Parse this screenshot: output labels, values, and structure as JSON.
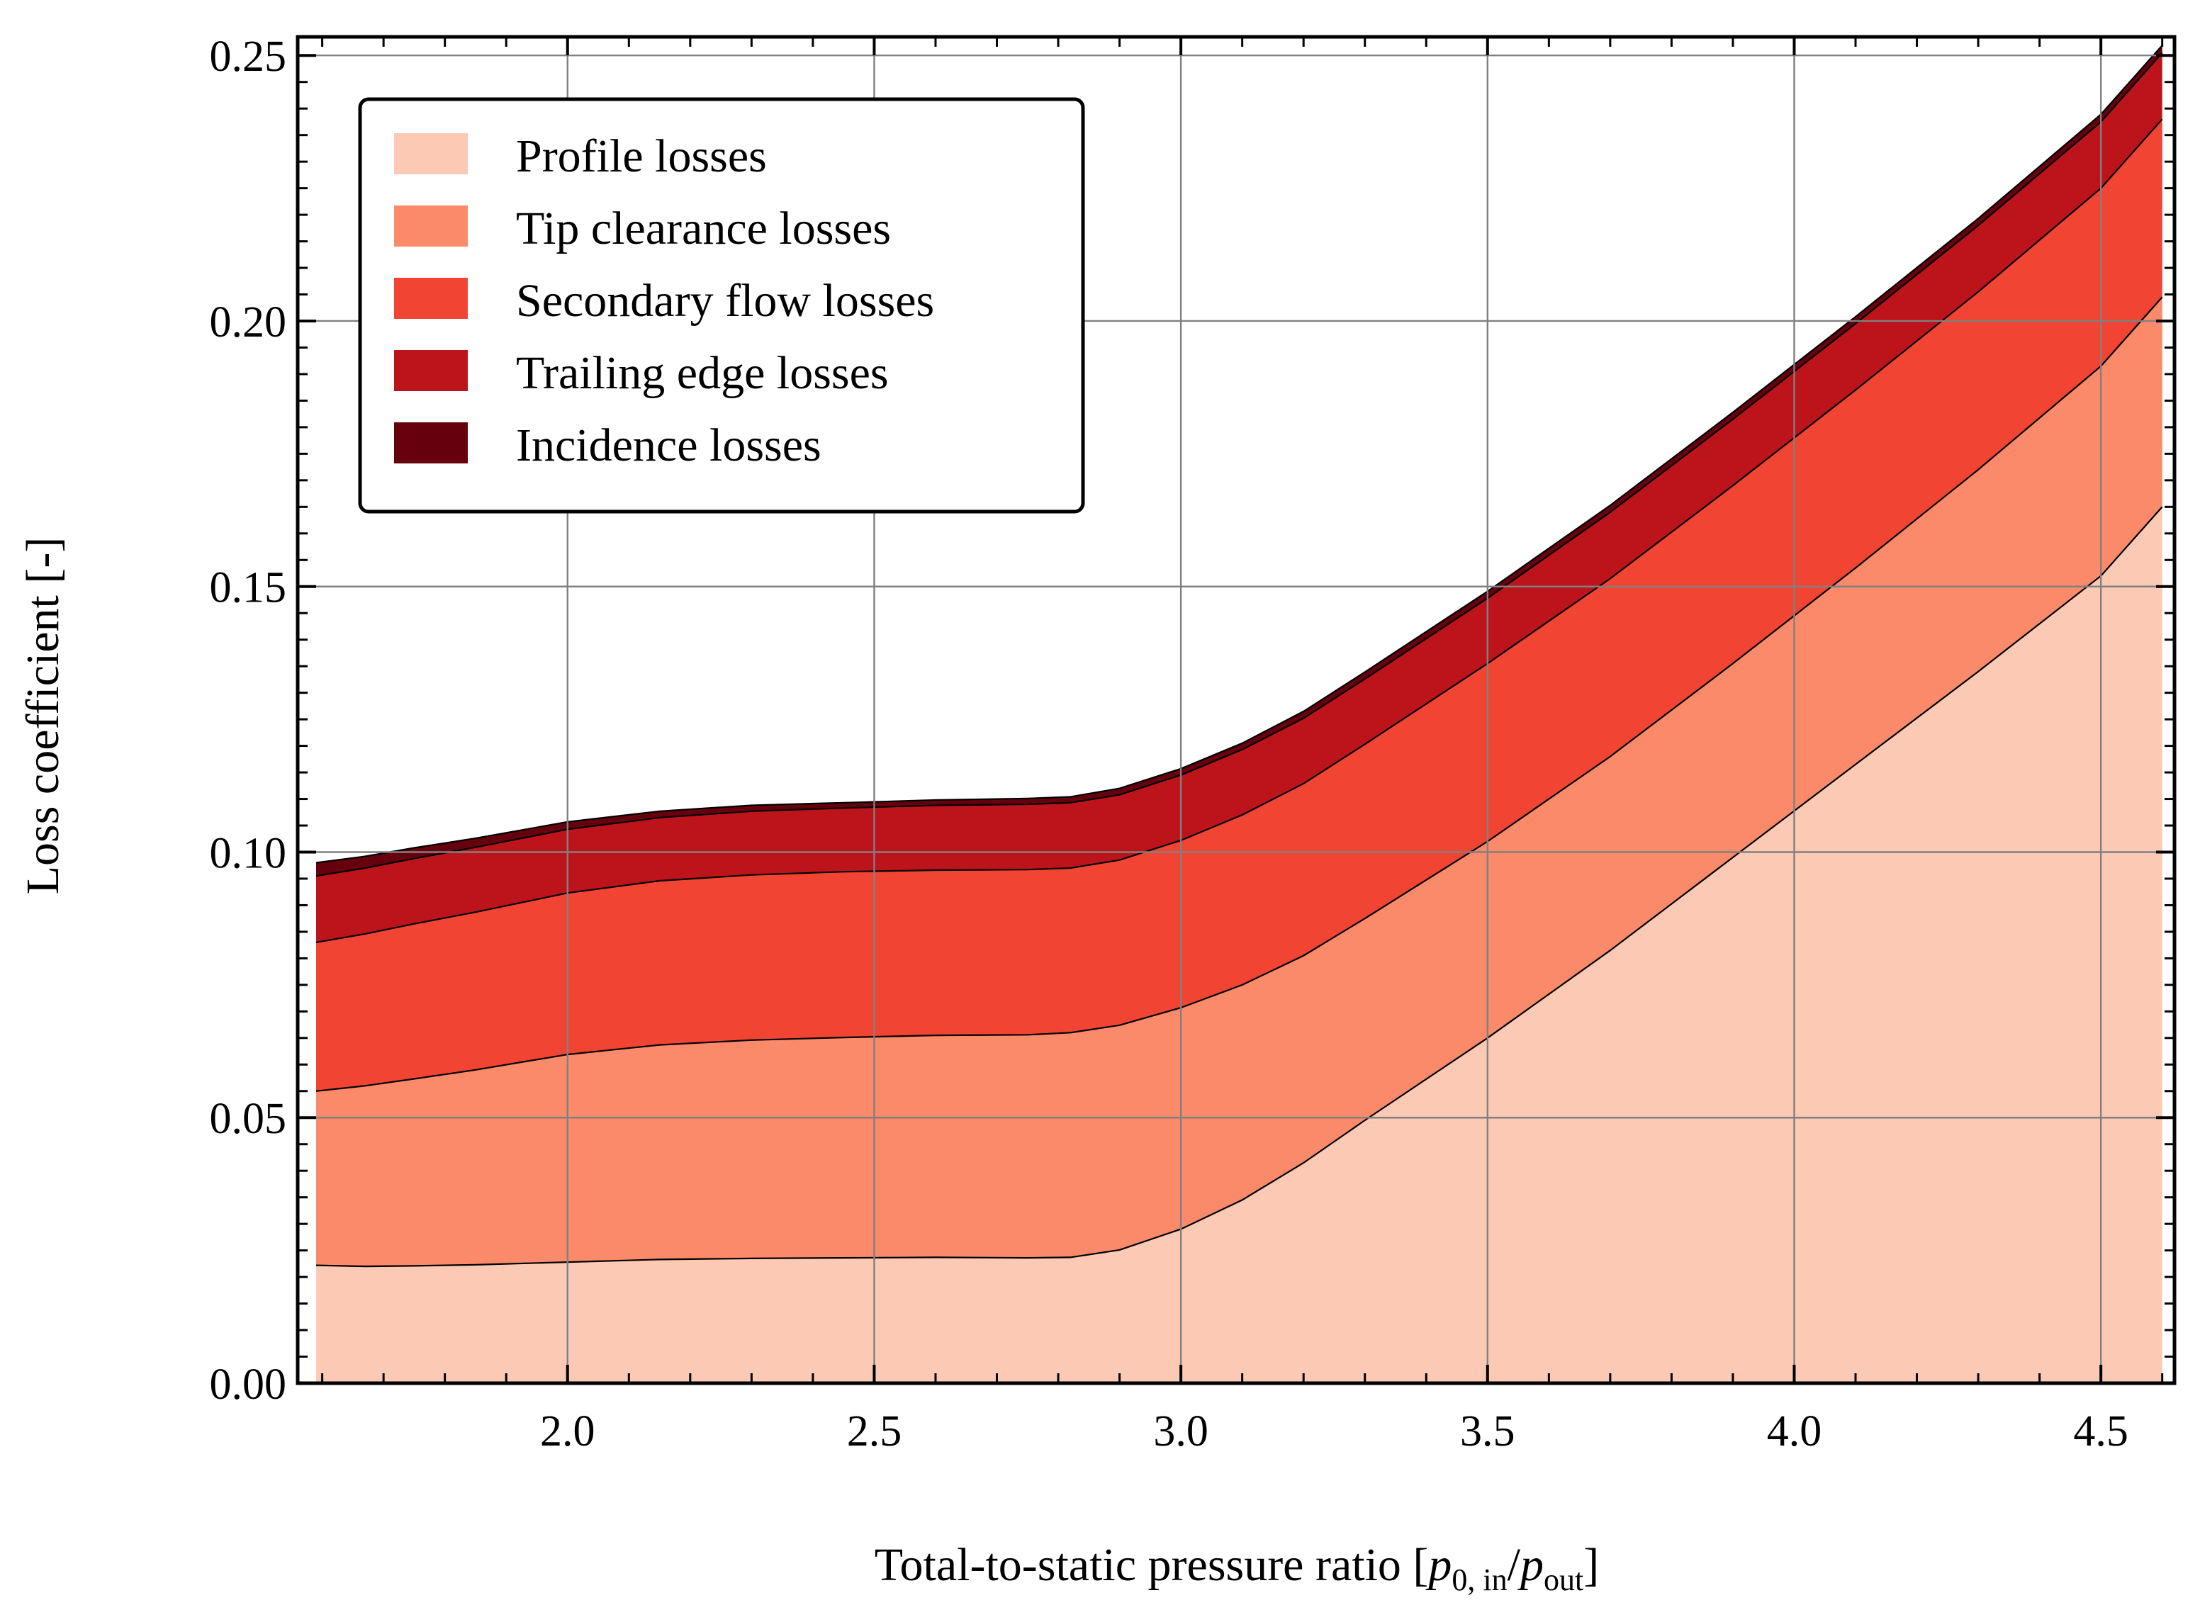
{
  "chart_data": {
    "type": "area",
    "stacked": true,
    "xlabel_main": "Total-to-static pressure ratio [",
    "xlabel_p1": "p",
    "xlabel_sub1": "0, in",
    "xlabel_slash": "/",
    "xlabel_p2": "p",
    "xlabel_sub2": "out",
    "xlabel_close": "]",
    "ylabel": "Loss coefficient [-]",
    "xlim": [
      1.56,
      4.62
    ],
    "ylim": [
      0.0,
      0.2535
    ],
    "xticks": [
      2.0,
      2.5,
      3.0,
      3.5,
      4.0,
      4.5
    ],
    "xtick_labels": [
      "2.0",
      "2.5",
      "3.0",
      "3.5",
      "4.0",
      "4.5"
    ],
    "yticks": [
      0.0,
      0.05,
      0.1,
      0.15,
      0.2,
      0.25
    ],
    "ytick_labels": [
      "0.00",
      "0.05",
      "0.10",
      "0.15",
      "0.20",
      "0.25"
    ],
    "grid": true,
    "legend_position": "top-left",
    "x": [
      1.59,
      1.67,
      1.75,
      1.85,
      2.0,
      2.15,
      2.3,
      2.45,
      2.6,
      2.75,
      2.82,
      2.9,
      3.0,
      3.1,
      3.2,
      3.3,
      3.5,
      3.7,
      3.9,
      4.1,
      4.3,
      4.5,
      4.6
    ],
    "series": [
      {
        "name": "Profile losses",
        "color": "#fcc9b4",
        "values": [
          0.0222,
          0.022,
          0.0221,
          0.0223,
          0.0228,
          0.0233,
          0.0235,
          0.0236,
          0.0237,
          0.0236,
          0.0237,
          0.0251,
          0.029,
          0.0345,
          0.0415,
          0.0495,
          0.065,
          0.0815,
          0.099,
          0.1165,
          0.134,
          0.152,
          0.165
        ]
      },
      {
        "name": "Tip clearance losses",
        "color": "#fb8a6a",
        "values": [
          0.0328,
          0.034,
          0.0352,
          0.0367,
          0.0391,
          0.0404,
          0.0411,
          0.0415,
          0.0418,
          0.042,
          0.0423,
          0.0423,
          0.0417,
          0.0405,
          0.039,
          0.038,
          0.037,
          0.0365,
          0.0365,
          0.037,
          0.038,
          0.0395,
          0.0395
        ]
      },
      {
        "name": "Secondary flow losses",
        "color": "#f14432",
        "values": [
          0.028,
          0.0286,
          0.0292,
          0.0297,
          0.0304,
          0.0309,
          0.0311,
          0.0312,
          0.0311,
          0.0311,
          0.031,
          0.0311,
          0.0315,
          0.032,
          0.0324,
          0.0328,
          0.0335,
          0.0335,
          0.0335,
          0.0335,
          0.0335,
          0.0335,
          0.0335
        ]
      },
      {
        "name": "Trailing edge losses",
        "color": "#bc141a",
        "values": [
          0.0125,
          0.0124,
          0.0123,
          0.0122,
          0.012,
          0.0119,
          0.012,
          0.012,
          0.0122,
          0.0123,
          0.0123,
          0.0123,
          0.0123,
          0.0123,
          0.0123,
          0.0123,
          0.0123,
          0.0125,
          0.0125,
          0.0125,
          0.0125,
          0.0125,
          0.0125
        ]
      },
      {
        "name": "Incidence losses",
        "color": "#67000d",
        "values": [
          0.0025,
          0.0022,
          0.002,
          0.0017,
          0.0014,
          0.0012,
          0.0011,
          0.001,
          0.001,
          0.0011,
          0.0011,
          0.0012,
          0.0012,
          0.0012,
          0.0013,
          0.0013,
          0.0013,
          0.0013,
          0.0013,
          0.0013,
          0.0013,
          0.0014,
          0.0014
        ]
      }
    ]
  }
}
